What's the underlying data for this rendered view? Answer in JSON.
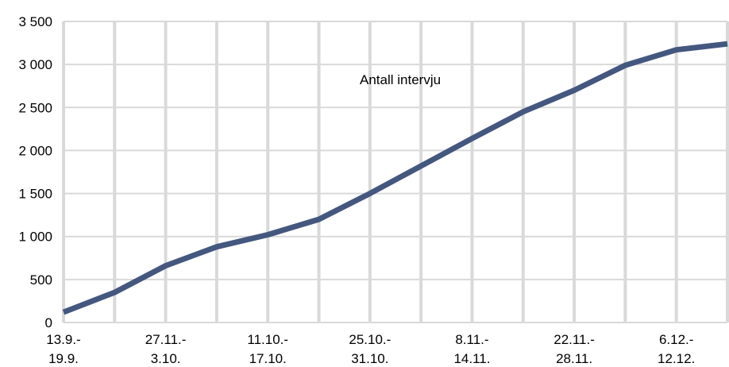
{
  "chart_data": {
    "type": "line",
    "title": "",
    "xlabel": "",
    "ylabel": "",
    "ylim": [
      0,
      3500
    ],
    "yticks": [
      0,
      500,
      1000,
      1500,
      2000,
      2500,
      3000,
      3500
    ],
    "ytick_labels": [
      "0",
      "500",
      "1 000",
      "1 500",
      "2 000",
      "2 500",
      "3 000",
      "3 500"
    ],
    "grid": "vertical and horizontal",
    "x_tick_labels": [
      [
        "13.9.-",
        "19.9."
      ],
      [
        "27.11.-",
        "3.10."
      ],
      [
        "11.10.-",
        "17.10."
      ],
      [
        "25.10.-",
        "31.10."
      ],
      [
        "8.11.-",
        "14.11."
      ],
      [
        "22.11.-",
        "28.11."
      ],
      [
        "6.12.-",
        "12.12."
      ]
    ],
    "series": [
      {
        "name": "Antall intervju",
        "color": "#44577e",
        "values": [
          120,
          350,
          660,
          880,
          1020,
          1200,
          1500,
          1820,
          2140,
          2450,
          2700,
          2990,
          3170,
          3240
        ]
      }
    ]
  }
}
